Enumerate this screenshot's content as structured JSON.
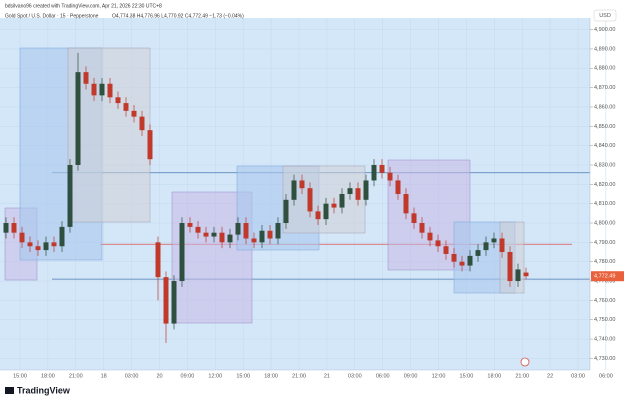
{
  "chart_data": {
    "type": "candlestick",
    "header": "bdsilvano96 created with TradingView.com, Apr 21, 2026 22:30 UTC+8",
    "symbol": "Gold Spot / U.S. Dollar · 15 · Pepperstone",
    "ohlc_text": "O4,774.38 H4,776.96 L4,770.92 C4,772.49 −1.73 (−0.04%)",
    "currency": "USD",
    "brand": "TradingView",
    "price_label": "4,772.49",
    "x_labels": [
      "15:00",
      "18:00",
      "21:00",
      "18",
      "03:00",
      "20",
      "09:00",
      "12:00",
      "15:00",
      "18:00",
      "21:00",
      "21",
      "03:00",
      "06:00",
      "09:00",
      "12:00",
      "15:00",
      "18:00",
      "21:00",
      "22",
      "03:00",
      "06:00"
    ],
    "open": [
      4795,
      4800,
      4795,
      4790,
      4788,
      4786,
      4790,
      4788,
      4798,
      4830,
      4878,
      4872,
      4866,
      4872,
      4865,
      4862,
      4858,
      4855,
      4848,
      4790,
      4772,
      4748,
      4770,
      4800,
      4798,
      4795,
      4793,
      4795,
      4790,
      4794,
      4800,
      4792,
      4790,
      4796,
      4792,
      4800,
      4812,
      4822,
      4818,
      4806,
      4802,
      4810,
      4808,
      4815,
      4818,
      4812,
      4822,
      4830,
      4826,
      4822,
      4815,
      4805,
      4800,
      4795,
      4791,
      4788,
      4784,
      4780,
      4778,
      4783,
      4786,
      4790,
      4792,
      4785,
      4770,
      4774.38
    ],
    "high": [
      4803,
      4803,
      4798,
      4793,
      4791,
      4793,
      4793,
      4801,
      4833,
      4888,
      4881,
      4875,
      4875,
      4875,
      4868,
      4865,
      4861,
      4858,
      4851,
      4793,
      4775,
      4773,
      4803,
      4803,
      4801,
      4798,
      4798,
      4798,
      4797,
      4803,
      4803,
      4795,
      4799,
      4799,
      4803,
      4815,
      4825,
      4825,
      4821,
      4809,
      4813,
      4813,
      4818,
      4821,
      4821,
      4825,
      4833,
      4833,
      4829,
      4825,
      4818,
      4808,
      4803,
      4798,
      4794,
      4791,
      4787,
      4783,
      4786,
      4789,
      4793,
      4795,
      4795,
      4788,
      4779,
      4776.96
    ],
    "low": [
      4792,
      4792,
      4787,
      4785,
      4783,
      4783,
      4785,
      4785,
      4795,
      4827,
      4869,
      4863,
      4863,
      4862,
      4859,
      4855,
      4852,
      4845,
      4830,
      4760,
      4738,
      4745,
      4767,
      4795,
      4792,
      4790,
      4790,
      4787,
      4787,
      4791,
      4789,
      4787,
      4787,
      4789,
      4789,
      4797,
      4809,
      4815,
      4803,
      4799,
      4799,
      4805,
      4805,
      4812,
      4809,
      4809,
      4819,
      4823,
      4819,
      4812,
      4802,
      4797,
      4792,
      4788,
      4785,
      4781,
      4777,
      4775,
      4775,
      4780,
      4783,
      4787,
      4782,
      4767,
      4767,
      4770.92
    ],
    "close": [
      4800,
      4795,
      4790,
      4788,
      4786,
      4790,
      4788,
      4798,
      4830,
      4878,
      4872,
      4866,
      4872,
      4865,
      4862,
      4858,
      4855,
      4848,
      4833,
      4772,
      4748,
      4770,
      4800,
      4798,
      4795,
      4793,
      4795,
      4790,
      4794,
      4800,
      4792,
      4790,
      4796,
      4792,
      4800,
      4812,
      4822,
      4818,
      4806,
      4802,
      4810,
      4808,
      4815,
      4818,
      4812,
      4822,
      4830,
      4826,
      4822,
      4815,
      4805,
      4800,
      4795,
      4791,
      4788,
      4784,
      4780,
      4778,
      4783,
      4786,
      4790,
      4792,
      4785,
      4770,
      4776,
      4772.49
    ],
    "up_color": "#2f4f3f",
    "down_color": "#c0392b",
    "levels": [
      {
        "value": 4826,
        "color": "#4a78b0"
      },
      {
        "value": 4789,
        "color": "#d9534f"
      },
      {
        "value": 4771,
        "color": "#4a78b0"
      }
    ],
    "ylim": [
      4724,
      4906
    ],
    "yticks": [
      {
        "value": 4730,
        "label": "4,730.00"
      },
      {
        "value": 4740,
        "label": "4,740.00"
      },
      {
        "value": 4750,
        "label": "4,750.00"
      },
      {
        "value": 4760,
        "label": "4,760.00"
      },
      {
        "value": 4770,
        "label": "4,770.00"
      },
      {
        "value": 4780,
        "label": "4,780.00"
      },
      {
        "value": 4790,
        "label": "4,790.00"
      },
      {
        "value": 4800,
        "label": "4,800.00"
      },
      {
        "value": 4810,
        "label": "4,810.00"
      },
      {
        "value": 4820,
        "label": "4,820.00"
      },
      {
        "value": 4830,
        "label": "4,830.00"
      },
      {
        "value": 4840,
        "label": "4,840.00"
      },
      {
        "value": 4850,
        "label": "4,850.00"
      },
      {
        "value": 4860,
        "label": "4,860.00"
      },
      {
        "value": 4870,
        "label": "4,870.00"
      },
      {
        "value": 4880,
        "label": "4,880.00"
      },
      {
        "value": 4890,
        "label": "4,890.00"
      },
      {
        "value": 4900,
        "label": "4,900.00"
      }
    ],
    "grid": true
  }
}
